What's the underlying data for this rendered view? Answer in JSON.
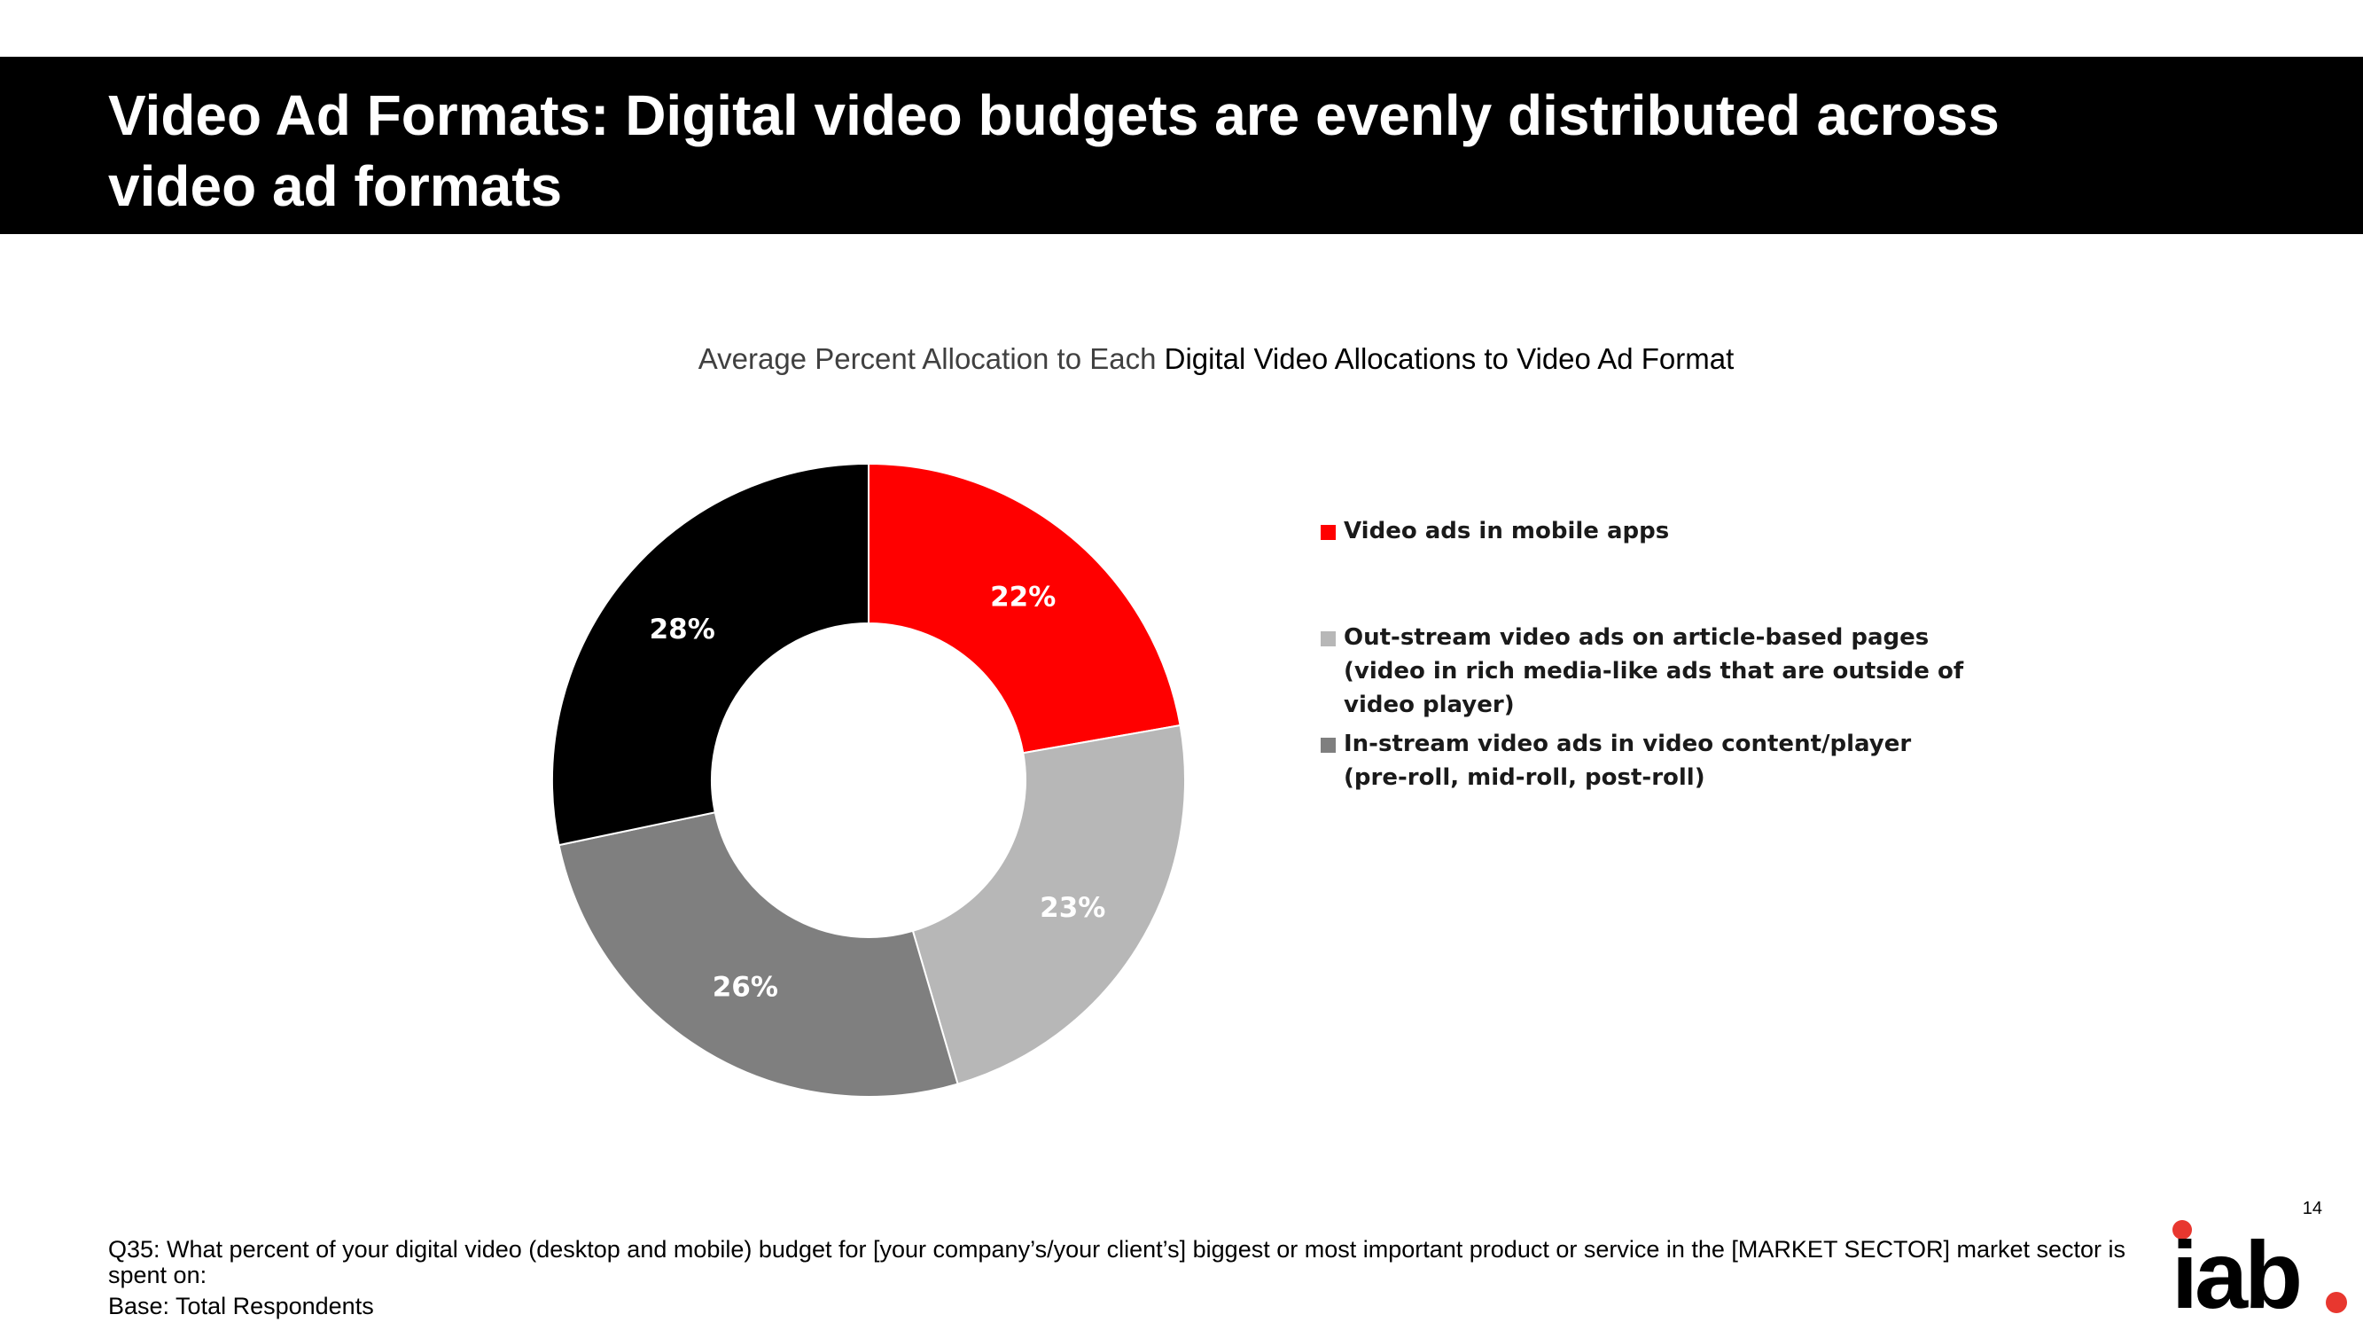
{
  "slide": {
    "title": "Video Ad Formats:  Digital video budgets are evenly distributed across video ad formats",
    "page_number": "14"
  },
  "chart_data": {
    "type": "pie",
    "title_prefix": "Average Percent Allocation to Each ",
    "title_main": "Digital Video Allocations to Video Ad Format",
    "donut": true,
    "legend_position": "right",
    "slices": [
      {
        "label": "Video ads in mobile apps",
        "value": 22,
        "display": "22%",
        "color": "#ff0000"
      },
      {
        "label": "Out-stream video ads on article-based pages (video in rich media-like ads that are outside of video player)",
        "value": 23,
        "display": "23%",
        "color": "#b7b7b7"
      },
      {
        "label": "In-stream video ads in video content/player (pre-roll, mid-roll, post-roll)",
        "value": 26,
        "display": "26%",
        "color": "#7f7f7f"
      },
      {
        "label": "",
        "value": 28,
        "display": "28%",
        "color": "#000000"
      }
    ]
  },
  "footnote": {
    "question": "Q35: What percent of your digital video (desktop and mobile) budget for [your company’s/your client’s] biggest or most important product or service in the [MARKET SECTOR] market sector is spent on:",
    "base": "Base: Total Respondents"
  },
  "logo": {
    "text": "iab",
    "dot_color": "#e8372f"
  }
}
